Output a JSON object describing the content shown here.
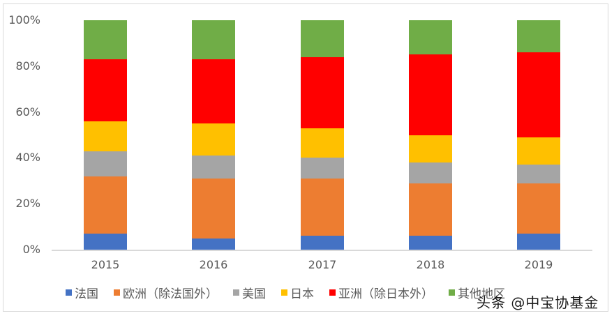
{
  "chart_data": {
    "type": "bar",
    "stacked": true,
    "percent": true,
    "title": "",
    "xlabel": "",
    "ylabel": "",
    "ylim": [
      0,
      100
    ],
    "yticks": [
      "0%",
      "20%",
      "40%",
      "60%",
      "80%",
      "100%"
    ],
    "categories": [
      "2015",
      "2016",
      "2017",
      "2018",
      "2019"
    ],
    "series": [
      {
        "name": "法国",
        "color": "#4472c4",
        "values": [
          7,
          5,
          6,
          6,
          7
        ]
      },
      {
        "name": "欧洲（除法国外）",
        "color": "#ed7d31",
        "values": [
          25,
          26,
          25,
          23,
          22
        ]
      },
      {
        "name": "美国",
        "color": "#a5a5a5",
        "values": [
          11,
          10,
          9,
          9,
          8
        ]
      },
      {
        "name": "日本",
        "color": "#ffc000",
        "values": [
          13,
          14,
          13,
          12,
          12
        ]
      },
      {
        "name": "亚洲（除日本外）",
        "color": "#ff0000",
        "values": [
          27,
          28,
          31,
          35,
          37
        ]
      },
      {
        "name": "其他地区",
        "color": "#70ad47",
        "values": [
          17,
          17,
          16,
          15,
          14
        ]
      }
    ],
    "grid": false,
    "legend_position": "bottom"
  },
  "watermark": "头条 @中宝协基金"
}
